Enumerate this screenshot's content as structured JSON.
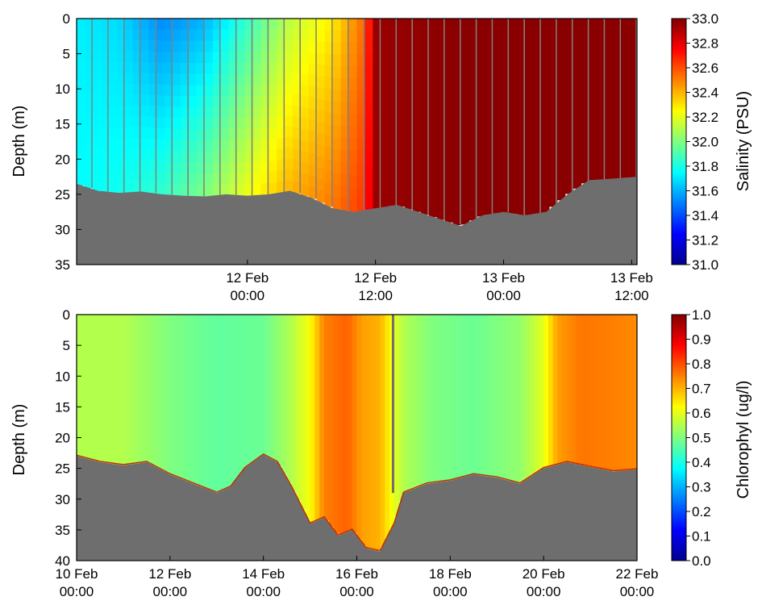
{
  "chart_data": [
    {
      "type": "heatmap",
      "title": "",
      "ylabel": "Depth (m)",
      "xlabel": "",
      "ylim": [
        35,
        0
      ],
      "yticks": [
        "0",
        "5",
        "10",
        "15",
        "20",
        "25",
        "30",
        "35"
      ],
      "xlim_hours": [
        -16,
        36.5
      ],
      "xticks": [
        {
          "hour": 0,
          "label": [
            "12 Feb",
            "00:00"
          ]
        },
        {
          "hour": 12,
          "label": [
            "12 Feb",
            "12:00"
          ]
        },
        {
          "hour": 24,
          "label": [
            "13 Feb",
            "00:00"
          ]
        },
        {
          "hour": 36,
          "label": [
            "13 Feb",
            "12:00"
          ]
        }
      ],
      "colorbar": {
        "label": "Salinity  (PSU)",
        "range": [
          31.0,
          33.0
        ],
        "ticks": [
          "33.0",
          "32.8",
          "32.6",
          "32.4",
          "32.2",
          "32.0",
          "31.8",
          "31.6",
          "31.4",
          "31.2",
          "31.0"
        ],
        "colormap": "jet"
      },
      "bottom_depth": {
        "x": [
          -16,
          -14,
          -12,
          -10,
          -8,
          -6,
          -4,
          -2,
          0,
          2,
          4,
          6,
          8,
          10,
          12,
          14,
          16,
          18,
          20,
          22,
          24,
          26,
          28,
          30,
          32,
          34,
          36.5
        ],
        "depth": [
          23.5,
          24.5,
          24.8,
          24.6,
          25.0,
          25.2,
          25.3,
          25.0,
          25.2,
          25.0,
          24.5,
          25.5,
          27.0,
          27.5,
          27.0,
          26.5,
          27.5,
          28.5,
          29.5,
          28.0,
          27.5,
          28.0,
          27.5,
          25.0,
          23.0,
          22.8,
          22.5
        ]
      },
      "salinity_section": {
        "x": [
          -16,
          -12,
          -8,
          -4,
          0,
          4,
          8,
          11,
          12,
          20,
          36.5
        ],
        "surface": [
          31.72,
          31.68,
          31.52,
          31.6,
          31.85,
          32.12,
          32.28,
          32.55,
          32.95,
          32.98,
          32.98
        ],
        "bottom": [
          31.75,
          31.78,
          31.85,
          32.0,
          32.22,
          32.4,
          32.52,
          32.65,
          32.95,
          32.98,
          32.98
        ]
      }
    },
    {
      "type": "heatmap",
      "title": "",
      "ylabel": "Depth (m)",
      "xlabel": "",
      "ylim": [
        40,
        0
      ],
      "yticks": [
        "0",
        "5",
        "10",
        "15",
        "20",
        "25",
        "30",
        "35",
        "40"
      ],
      "xlim_days": [
        0,
        12
      ],
      "xticks": [
        {
          "day": 0,
          "label": [
            "10 Feb",
            "00:00"
          ]
        },
        {
          "day": 2,
          "label": [
            "12 Feb",
            "00:00"
          ]
        },
        {
          "day": 4,
          "label": [
            "14 Feb",
            "00:00"
          ]
        },
        {
          "day": 6,
          "label": [
            "16 Feb",
            "00:00"
          ]
        },
        {
          "day": 8,
          "label": [
            "18 Feb",
            "00:00"
          ]
        },
        {
          "day": 10,
          "label": [
            "20 Feb",
            "00:00"
          ]
        },
        {
          "day": 12,
          "label": [
            "22 Feb",
            "00:00"
          ]
        }
      ],
      "colorbar": {
        "label": "Chlorophyl  (ug/l)",
        "range": [
          0.0,
          1.0
        ],
        "ticks": [
          "1.0",
          "0.9",
          "0.8",
          "0.7",
          "0.6",
          "0.5",
          "0.4",
          "0.3",
          "0.2",
          "0.1",
          "0.0"
        ],
        "colormap": "jet"
      },
      "bottom_depth": {
        "x": [
          0,
          0.5,
          1,
          1.5,
          2,
          2.5,
          3,
          3.3,
          3.6,
          4,
          4.3,
          4.6,
          5,
          5.3,
          5.6,
          5.9,
          6.2,
          6.5,
          6.8,
          7,
          7.5,
          8,
          8.5,
          9,
          9.5,
          10,
          10.5,
          11,
          11.5,
          12
        ],
        "depth": [
          23.0,
          24.0,
          24.5,
          24.0,
          26.0,
          27.5,
          29.0,
          28.0,
          25.0,
          22.8,
          24.0,
          28.0,
          34.0,
          33.0,
          36.0,
          35.0,
          38.0,
          38.5,
          34.0,
          29.0,
          27.5,
          27.0,
          26.0,
          26.5,
          27.5,
          25.0,
          24.0,
          24.8,
          25.5,
          25.2
        ]
      },
      "chlorophyl_section": {
        "x": [
          0,
          1,
          2,
          3,
          4,
          4.6,
          5,
          5.3,
          5.8,
          6.1,
          6.5,
          6.8,
          7,
          7.6,
          8.5,
          9.5,
          10,
          10.3,
          10.8,
          11.5,
          12
        ],
        "value": [
          0.55,
          0.55,
          0.5,
          0.47,
          0.48,
          0.55,
          0.62,
          0.75,
          0.78,
          0.72,
          0.7,
          0.6,
          0.55,
          0.5,
          0.48,
          0.52,
          0.6,
          0.72,
          0.76,
          0.75,
          0.74
        ]
      }
    }
  ]
}
